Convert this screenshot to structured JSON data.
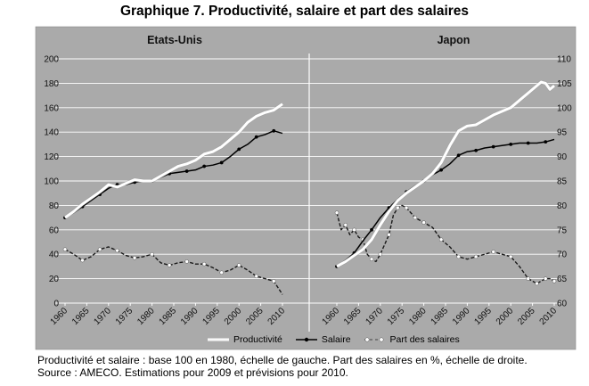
{
  "title": "Graphique 7. Productivité, salaire et part des salaires",
  "colors": {
    "panel_bg": "#aaaaaa",
    "productivity": "#ffffff",
    "salary": "#000000",
    "share": "#ffffff",
    "grid": "#ffffff"
  },
  "legend": [
    {
      "label": "Productivité",
      "style": "white-line"
    },
    {
      "label": "Salaire",
      "style": "black-line-markers"
    },
    {
      "label": "Part des salaires",
      "style": "white-dashed-markers"
    }
  ],
  "notes": [
    "Productivité et salaire : base 100 en 1980, échelle de gauche. Part des salaires en %, échelle de droite.",
    "Source : AMECO. Estimations pour 2009 et prévisions pour 2010."
  ],
  "chart_data": [
    {
      "type": "line",
      "panel_title": "Etats-Unis",
      "xlim": [
        1960,
        2010
      ],
      "x_ticks": [
        "1960",
        "1965",
        "1970",
        "1975",
        "1980",
        "1985",
        "1990",
        "1995",
        "2000",
        "2005",
        "2010"
      ],
      "left_axis": {
        "ylim": [
          0,
          200
        ],
        "ticks": [
          "0",
          "20",
          "40",
          "60",
          "80",
          "100",
          "120",
          "140",
          "160",
          "180",
          "200"
        ]
      },
      "series": [
        {
          "name": "Productivité",
          "axis": "left",
          "x": [
            1960,
            1962,
            1964,
            1966,
            1968,
            1970,
            1972,
            1974,
            1976,
            1978,
            1980,
            1982,
            1984,
            1986,
            1988,
            1990,
            1992,
            1994,
            1996,
            1998,
            2000,
            2002,
            2004,
            2006,
            2008,
            2010
          ],
          "values": [
            70,
            75,
            81,
            86,
            91,
            97,
            95,
            98,
            101,
            100,
            100,
            104,
            108,
            112,
            114,
            117,
            122,
            124,
            128,
            134,
            140,
            148,
            153,
            156,
            158,
            163
          ]
        },
        {
          "name": "Salaire",
          "axis": "left",
          "x": [
            1960,
            1962,
            1964,
            1966,
            1968,
            1970,
            1972,
            1974,
            1976,
            1978,
            1980,
            1982,
            1984,
            1986,
            1988,
            1990,
            1992,
            1994,
            1996,
            1998,
            2000,
            2002,
            2004,
            2006,
            2008,
            2010
          ],
          "values": [
            70,
            74,
            79,
            84,
            89,
            94,
            97,
            97,
            99,
            100,
            100,
            103,
            106,
            107,
            108,
            109,
            112,
            113,
            115,
            120,
            126,
            130,
            136,
            138,
            141,
            139
          ]
        },
        {
          "name": "Part des salaires",
          "axis": "left",
          "x": [
            1960,
            1962,
            1964,
            1966,
            1968,
            1970,
            1972,
            1974,
            1976,
            1978,
            1980,
            1982,
            1984,
            1986,
            1988,
            1990,
            1992,
            1994,
            1996,
            1998,
            2000,
            2002,
            2004,
            2006,
            2008,
            2010
          ],
          "values": [
            44,
            40,
            35,
            38,
            44,
            46,
            43,
            39,
            37,
            38,
            40,
            33,
            31,
            33,
            34,
            32,
            32,
            29,
            25,
            27,
            31,
            27,
            22,
            20,
            18,
            7
          ]
        }
      ]
    },
    {
      "type": "line",
      "panel_title": "Japon",
      "xlim": [
        1960,
        2010
      ],
      "x_ticks": [
        "1960",
        "1965",
        "1970",
        "1975",
        "1980",
        "1985",
        "1990",
        "1995",
        "2000",
        "2005",
        "2010"
      ],
      "left_axis": {
        "ylim": [
          0,
          200
        ]
      },
      "right_axis": {
        "ylim": [
          60,
          110
        ],
        "ticks": [
          "60",
          "65",
          "70",
          "75",
          "80",
          "85",
          "90",
          "95",
          "100",
          "105",
          "110"
        ]
      },
      "series": [
        {
          "name": "Productivité",
          "axis": "left",
          "x": [
            1960,
            1962,
            1964,
            1966,
            1968,
            1970,
            1972,
            1974,
            1976,
            1978,
            1980,
            1982,
            1984,
            1986,
            1988,
            1990,
            1992,
            1994,
            1996,
            1998,
            2000,
            2002,
            2004,
            2006,
            2007,
            2008,
            2009,
            2010
          ],
          "values": [
            30,
            34,
            39,
            44,
            52,
            64,
            75,
            84,
            90,
            95,
            100,
            106,
            115,
            129,
            141,
            145,
            146,
            150,
            154,
            157,
            160,
            166,
            172,
            178,
            181,
            180,
            175,
            178
          ]
        },
        {
          "name": "Salaire",
          "axis": "left",
          "x": [
            1960,
            1962,
            1964,
            1966,
            1968,
            1970,
            1972,
            1974,
            1976,
            1978,
            1980,
            1982,
            1984,
            1986,
            1988,
            1990,
            1992,
            1994,
            1996,
            1998,
            2000,
            2002,
            2004,
            2006,
            2008,
            2010
          ],
          "values": [
            30,
            35,
            41,
            51,
            60,
            70,
            78,
            85,
            91,
            96,
            100,
            105,
            109,
            114,
            121,
            124,
            125,
            127,
            128,
            129,
            130,
            131,
            131,
            131,
            132,
            134
          ]
        },
        {
          "name": "Part des salaires",
          "axis": "right",
          "x": [
            1960,
            1961,
            1962,
            1963,
            1964,
            1965,
            1966,
            1967,
            1968,
            1969,
            1970,
            1971,
            1972,
            1973,
            1974,
            1975,
            1976,
            1977,
            1978,
            1979,
            1980,
            1982,
            1984,
            1986,
            1988,
            1990,
            1992,
            1994,
            1996,
            1998,
            2000,
            2002,
            2004,
            2005,
            2006,
            2007,
            2008,
            2009,
            2010
          ],
          "values": [
            78.5,
            75,
            76,
            74,
            75,
            73.5,
            73,
            70,
            69,
            68.5,
            70,
            72,
            74,
            78,
            79.5,
            80,
            79.5,
            78.5,
            77.5,
            77,
            76.5,
            75.5,
            73,
            71.5,
            69.5,
            69,
            69.5,
            70,
            70.5,
            70,
            69.5,
            67.5,
            65,
            64.5,
            64,
            64.5,
            65,
            65,
            64.5
          ]
        }
      ]
    }
  ]
}
